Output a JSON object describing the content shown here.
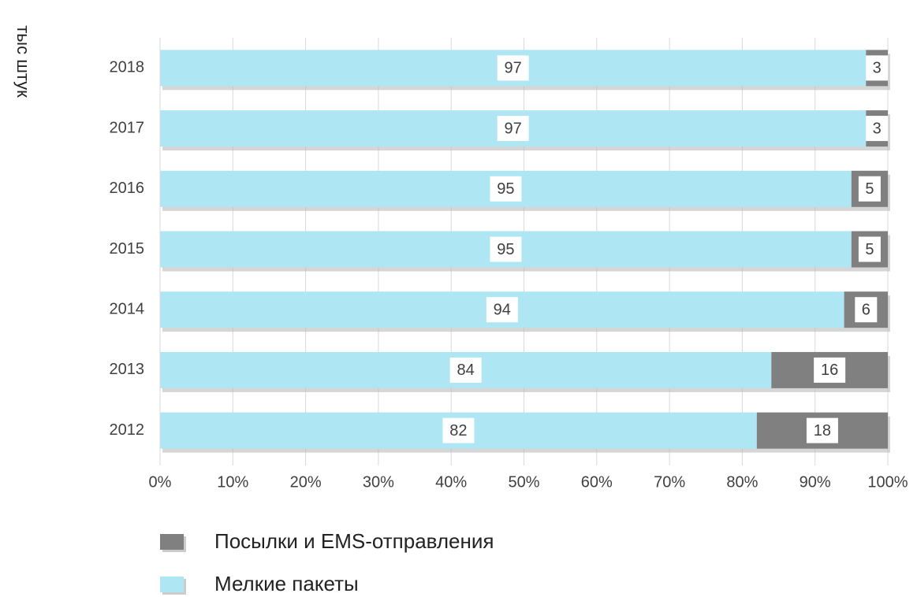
{
  "chart_data": {
    "type": "stacked_barh",
    "y_axis_label": "тыс штук",
    "categories": [
      "2018",
      "2017",
      "2016",
      "2015",
      "2014",
      "2013",
      "2012"
    ],
    "series": [
      {
        "name": "Посылки и EMS-отправления",
        "color": "#808080",
        "values": [
          3,
          3,
          5,
          5,
          6,
          16,
          18
        ]
      },
      {
        "name": "Мелкие пакеты",
        "color": "#aee6f3",
        "values": [
          97,
          97,
          95,
          95,
          94,
          84,
          82
        ]
      }
    ],
    "xlim": [
      0,
      100
    ],
    "xticks": [
      {
        "value": 0,
        "label": "0%"
      },
      {
        "value": 10,
        "label": "10%"
      },
      {
        "value": 20,
        "label": "20%"
      },
      {
        "value": 30,
        "label": "30%"
      },
      {
        "value": 40,
        "label": "40%"
      },
      {
        "value": 50,
        "label": "50%"
      },
      {
        "value": 60,
        "label": "60%"
      },
      {
        "value": 70,
        "label": "70%"
      },
      {
        "value": 80,
        "label": "80%"
      },
      {
        "value": 90,
        "label": "90%"
      },
      {
        "value": 100,
        "label": "100%"
      }
    ],
    "grid": true
  }
}
